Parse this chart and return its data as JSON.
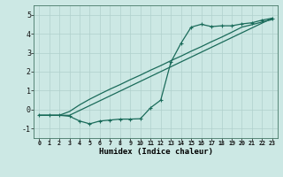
{
  "xlabel": "Humidex (Indice chaleur)",
  "bg_color": "#cce8e4",
  "grid_color": "#b0d0cc",
  "line_color": "#1a6b5a",
  "xlim": [
    -0.5,
    23.5
  ],
  "ylim": [
    -1.5,
    5.5
  ],
  "xticks": [
    0,
    1,
    2,
    3,
    4,
    5,
    6,
    7,
    8,
    9,
    10,
    11,
    12,
    13,
    14,
    15,
    16,
    17,
    18,
    19,
    20,
    21,
    22,
    23
  ],
  "yticks": [
    -1,
    0,
    1,
    2,
    3,
    4,
    5
  ],
  "line1_x": [
    0,
    1,
    2,
    3,
    4,
    5,
    6,
    7,
    8,
    9,
    10,
    11,
    12,
    13,
    14,
    15,
    16,
    17,
    18,
    19,
    20,
    21,
    22,
    23
  ],
  "line1_y": [
    -0.3,
    -0.3,
    -0.3,
    -0.35,
    -0.6,
    -0.75,
    -0.6,
    -0.55,
    -0.5,
    -0.5,
    -0.48,
    0.1,
    0.5,
    2.5,
    3.5,
    4.35,
    4.5,
    4.38,
    4.42,
    4.42,
    4.52,
    4.58,
    4.72,
    4.82
  ],
  "line2_x": [
    0,
    3,
    23
  ],
  "line2_y": [
    -0.3,
    -0.3,
    4.82
  ],
  "line3_x": [
    0,
    1,
    2,
    3,
    4,
    5,
    6,
    7,
    8,
    9,
    10,
    11,
    12,
    13,
    14,
    15,
    16,
    17,
    18,
    19,
    20,
    21,
    22,
    23
  ],
  "line3_y": [
    -0.3,
    -0.3,
    -0.3,
    -0.1,
    0.25,
    0.55,
    0.82,
    1.08,
    1.32,
    1.58,
    1.82,
    2.08,
    2.32,
    2.58,
    2.82,
    3.08,
    3.32,
    3.58,
    3.82,
    4.08,
    4.35,
    4.48,
    4.62,
    4.75
  ]
}
